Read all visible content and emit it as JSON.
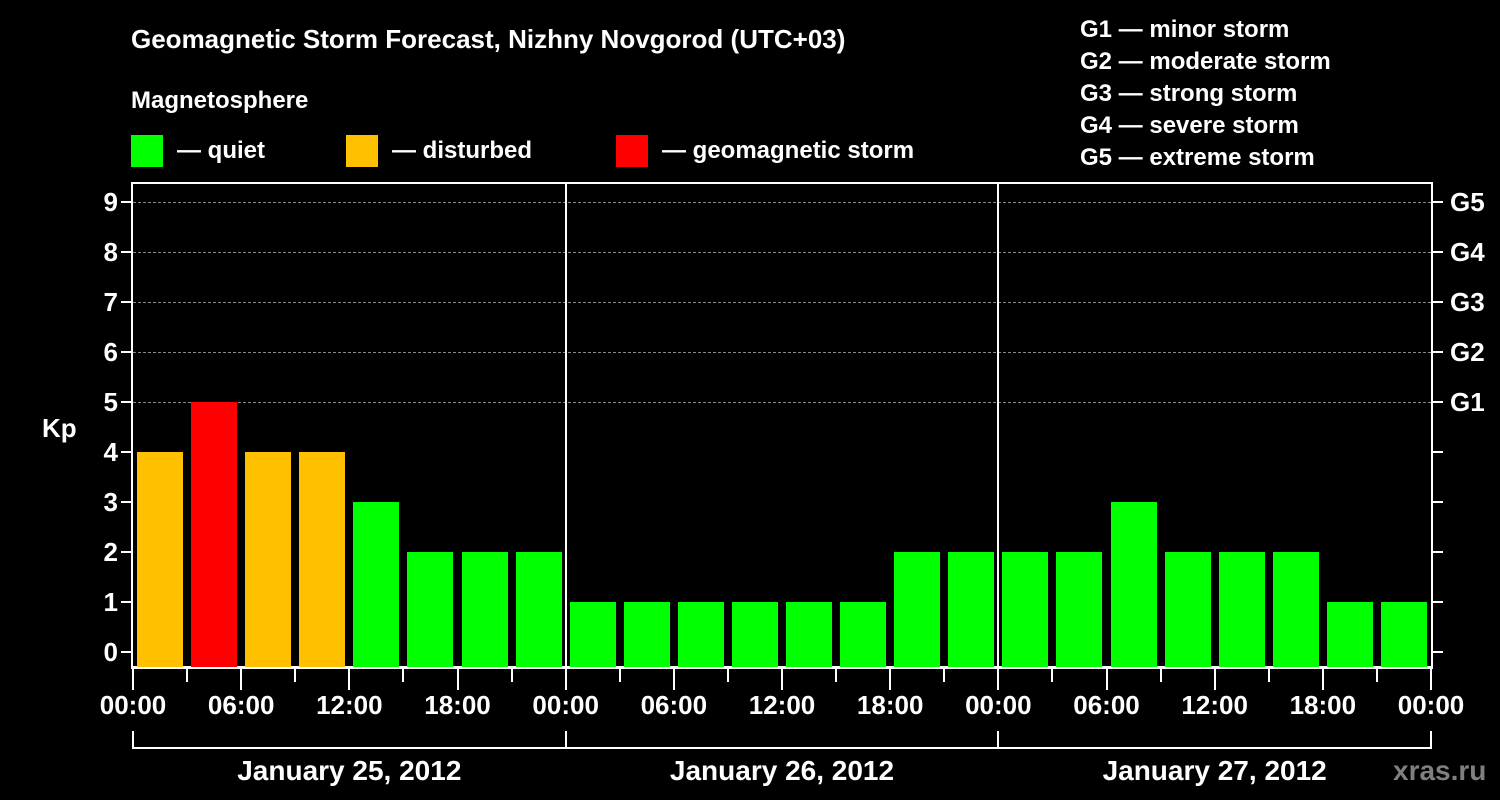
{
  "title": "Geomagnetic Storm Forecast, Nizhny Novgorod (UTC+03)",
  "subtitle": "Magnetosphere",
  "legend": [
    {
      "label": "— quiet",
      "color": "#00ff00"
    },
    {
      "label": "— disturbed",
      "color": "#ffc000"
    },
    {
      "label": "— geomagnetic storm",
      "color": "#ff0000"
    }
  ],
  "g_legend": [
    "G1 — minor storm",
    "G2 — moderate storm",
    "G3 — strong storm",
    "G4 — severe storm",
    "G5 — extreme storm"
  ],
  "watermark": "xras.ru",
  "chart_data": {
    "type": "bar",
    "title": "Geomagnetic Storm Forecast, Nizhny Novgorod (UTC+03)",
    "xlabel": "",
    "ylabel": "Kp",
    "ylim": [
      0,
      9
    ],
    "yticks": [
      0,
      1,
      2,
      3,
      4,
      5,
      6,
      7,
      8,
      9
    ],
    "right_axis_labels": {
      "5": "G1",
      "6": "G2",
      "7": "G3",
      "8": "G4",
      "9": "G5"
    },
    "grid": "dashed horizontal at Kp 5-9",
    "x_tick_labels": [
      "00:00",
      "06:00",
      "12:00",
      "18:00",
      "00:00",
      "06:00",
      "12:00",
      "18:00",
      "00:00",
      "06:00",
      "12:00",
      "18:00",
      "00:00"
    ],
    "date_labels": [
      "January 25, 2012",
      "January 26, 2012",
      "January 27, 2012"
    ],
    "categories": [
      "Jan 25 00-03",
      "Jan 25 03-06",
      "Jan 25 06-09",
      "Jan 25 09-12",
      "Jan 25 12-15",
      "Jan 25 15-18",
      "Jan 25 18-21",
      "Jan 25 21-24",
      "Jan 26 00-03",
      "Jan 26 03-06",
      "Jan 26 06-09",
      "Jan 26 09-12",
      "Jan 26 12-15",
      "Jan 26 15-18",
      "Jan 26 18-21",
      "Jan 26 21-24",
      "Jan 27 00-03",
      "Jan 27 03-06",
      "Jan 27 06-09",
      "Jan 27 09-12",
      "Jan 27 12-15",
      "Jan 27 15-18",
      "Jan 27 18-21",
      "Jan 27 21-24"
    ],
    "values": [
      4,
      5,
      4,
      4,
      3,
      2,
      2,
      2,
      1,
      1,
      1,
      1,
      1,
      1,
      2,
      2,
      2,
      2,
      3,
      2,
      2,
      2,
      1,
      1
    ],
    "colors": [
      "#ffc000",
      "#ff0000",
      "#ffc000",
      "#ffc000",
      "#00ff00",
      "#00ff00",
      "#00ff00",
      "#00ff00",
      "#00ff00",
      "#00ff00",
      "#00ff00",
      "#00ff00",
      "#00ff00",
      "#00ff00",
      "#00ff00",
      "#00ff00",
      "#00ff00",
      "#00ff00",
      "#00ff00",
      "#00ff00",
      "#00ff00",
      "#00ff00",
      "#00ff00",
      "#00ff00"
    ],
    "status_colors": {
      "quiet": "#00ff00",
      "disturbed": "#ffc000",
      "storm": "#ff0000"
    }
  }
}
